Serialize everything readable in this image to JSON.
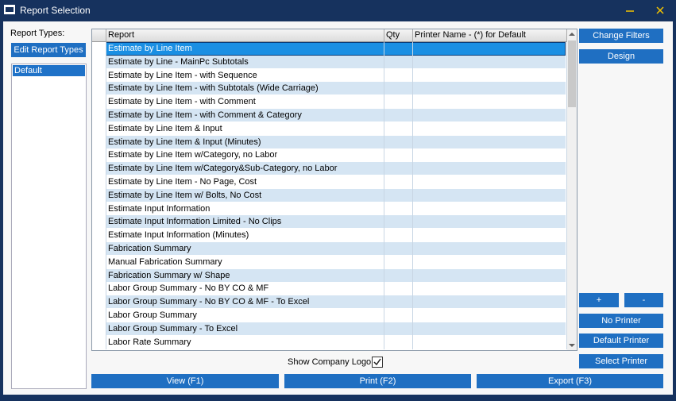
{
  "window": {
    "title": "Report Selection"
  },
  "left_panel": {
    "label": "Report Types:",
    "button": "Edit Report Types",
    "items": [
      "Default"
    ],
    "selected": 0
  },
  "grid": {
    "columns": [
      "Report",
      "Qty",
      "Printer Name - (*) for Default"
    ],
    "selected": 0,
    "rows": [
      "Estimate by Line Item",
      "Estimate by Line - MainPc Subtotals",
      "Estimate by Line Item - with Sequence",
      "Estimate by Line Item - with Subtotals (Wide Carriage)",
      "Estimate by Line Item - with Comment",
      "Estimate by Line Item - with Comment & Category",
      "Estimate by Line Item & Input",
      "Estimate by Line Item & Input (Minutes)",
      "Estimate by Line Item w/Category, no Labor",
      "Estimate by Line Item w/Category&Sub-Category, no Labor",
      "Estimate by Line Item - No Page, Cost",
      "Estimate by Line Item w/ Bolts, No Cost",
      "Estimate Input Information",
      "Estimate Input Information Limited - No Clips",
      "Estimate Input Information (Minutes)",
      "Fabrication Summary",
      "Manual Fabrication Summary",
      "Fabrication Summary w/ Shape",
      "Labor Group Summary - No BY CO & MF",
      "Labor Group Summary - No BY CO & MF - To Excel",
      "Labor Group Summary",
      "Labor Group Summary - To Excel",
      "Labor Rate Summary"
    ]
  },
  "right_buttons": {
    "change_filters": "Change Filters",
    "design": "Design",
    "add": "+",
    "remove": "-",
    "no_printer": "No Printer",
    "default_printer": "Default Printer",
    "select_printer": "Select Printer"
  },
  "show_logo": {
    "label": "Show Company Logo:",
    "checked": true
  },
  "bottom_buttons": [
    "View (F1)",
    "Print (F2)",
    "Export (F3)"
  ]
}
